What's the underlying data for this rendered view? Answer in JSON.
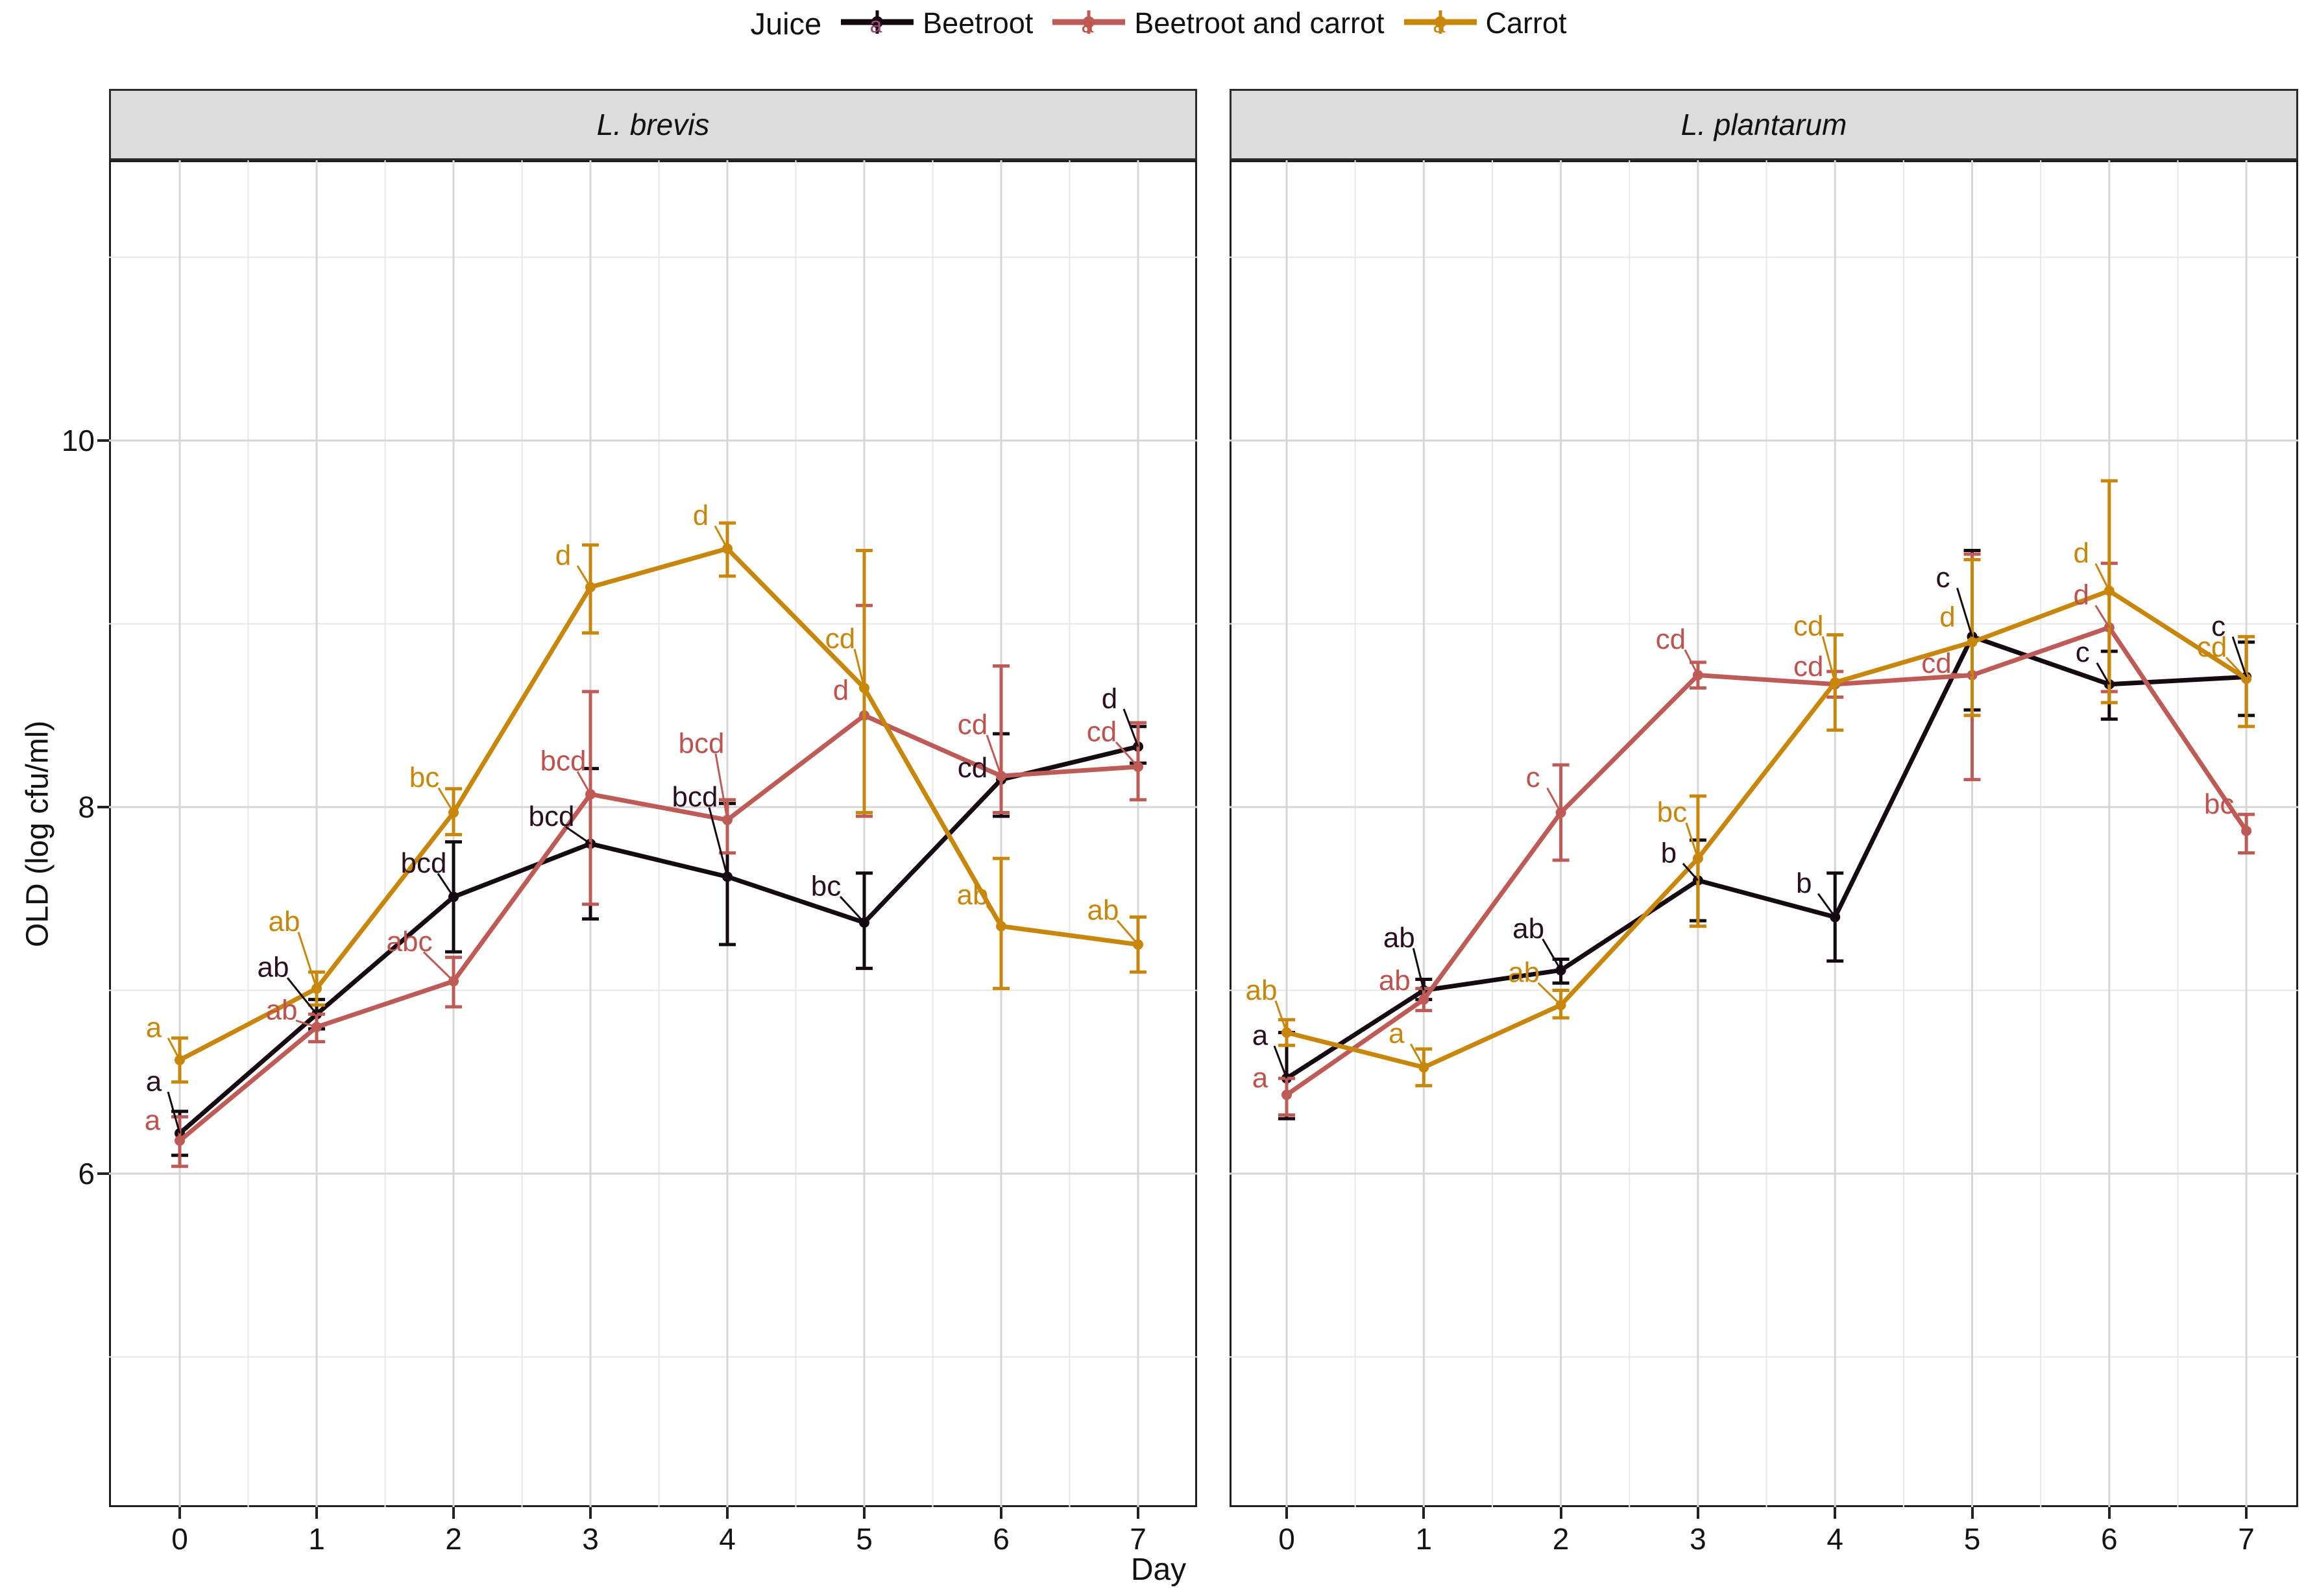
{
  "legend": {
    "title": "Juice",
    "key_letter": "a"
  },
  "chart_data": {
    "type": "line",
    "legend_title": "Juice",
    "legend_position": "top",
    "xlabel": "Day",
    "ylabel": "OLD (log cfu/ml)",
    "x_ticks": [
      0,
      1,
      2,
      3,
      4,
      5,
      6,
      7
    ],
    "y_ticks": [
      6,
      8,
      10
    ],
    "y_minor_ticks": [
      5,
      7,
      9,
      11
    ],
    "ylim": [
      4.2,
      11.5
    ],
    "grid": true,
    "series_meta": [
      {
        "key": "beetroot",
        "label": "Beetroot",
        "color": "#160a12",
        "letter_color": "#2a0f1f",
        "legend_letter_color": "#a1487e"
      },
      {
        "key": "beetroot_carrot",
        "label": "Beetroot and carrot",
        "color": "#bf5b56",
        "letter_color": "#c0524e",
        "legend_letter_color": "#c0524e"
      },
      {
        "key": "carrot",
        "label": "Carrot",
        "color": "#c8860b",
        "letter_color": "#c8860b",
        "legend_letter_color": "#c8860b"
      }
    ],
    "facets": [
      {
        "title": "L. brevis",
        "series": [
          {
            "key": "beetroot",
            "points": [
              {
                "x": 0,
                "y": 6.22,
                "lo": 6.1,
                "hi": 6.34,
                "letter": "a",
                "lx": -40,
                "ly": -80
              },
              {
                "x": 1,
                "y": 6.87,
                "lo": 6.79,
                "hi": 6.95,
                "letter": "ab",
                "lx": -67,
                "ly": -72
              },
              {
                "x": 2,
                "y": 7.51,
                "lo": 7.21,
                "hi": 7.81,
                "letter": "bcd",
                "lx": -46,
                "ly": -52
              },
              {
                "x": 3,
                "y": 7.8,
                "lo": 7.39,
                "hi": 8.21,
                "letter": "bcd",
                "lx": -60,
                "ly": -42
              },
              {
                "x": 4,
                "y": 7.62,
                "lo": 7.25,
                "hi": 8.02,
                "letter": "bcd",
                "lx": -50,
                "ly": -123
              },
              {
                "x": 5,
                "y": 7.37,
                "lo": 7.12,
                "hi": 7.64,
                "letter": "bc",
                "lx": -59,
                "ly": -56
              },
              {
                "x": 6,
                "y": 8.15,
                "lo": 7.95,
                "hi": 8.4,
                "letter": "cd",
                "lx": -44,
                "ly": -18
              },
              {
                "x": 7,
                "y": 8.33,
                "lo": 8.24,
                "hi": 8.44,
                "letter": "d",
                "lx": -44,
                "ly": -74
              }
            ]
          },
          {
            "key": "beetroot_carrot",
            "points": [
              {
                "x": 0,
                "y": 6.18,
                "lo": 6.04,
                "hi": 6.31,
                "letter": "a",
                "lx": -42,
                "ly": -31
              },
              {
                "x": 1,
                "y": 6.8,
                "lo": 6.72,
                "hi": 6.87,
                "letter": "ab",
                "lx": -54,
                "ly": -26
              },
              {
                "x": 2,
                "y": 7.05,
                "lo": 6.91,
                "hi": 7.18,
                "letter": "abc",
                "lx": -68,
                "ly": -61
              },
              {
                "x": 3,
                "y": 8.07,
                "lo": 7.47,
                "hi": 8.63,
                "letter": "bcd",
                "lx": -42,
                "ly": -51
              },
              {
                "x": 4,
                "y": 7.93,
                "lo": 7.75,
                "hi": 8.04,
                "letter": "bcd",
                "lx": -40,
                "ly": -118
              },
              {
                "x": 5,
                "y": 8.5,
                "lo": 7.95,
                "hi": 9.1,
                "letter": "d",
                "lx": -36,
                "ly": -39
              },
              {
                "x": 6,
                "y": 8.17,
                "lo": 7.97,
                "hi": 8.77,
                "letter": "cd",
                "lx": -44,
                "ly": -79
              },
              {
                "x": 7,
                "y": 8.22,
                "lo": 8.04,
                "hi": 8.46,
                "letter": "cd",
                "lx": -56,
                "ly": -54
              }
            ]
          },
          {
            "key": "carrot",
            "points": [
              {
                "x": 0,
                "y": 6.62,
                "lo": 6.5,
                "hi": 6.74,
                "letter": "a",
                "lx": -40,
                "ly": -50
              },
              {
                "x": 1,
                "y": 7.01,
                "lo": 6.92,
                "hi": 7.1,
                "letter": "ab",
                "lx": -50,
                "ly": -103
              },
              {
                "x": 2,
                "y": 7.97,
                "lo": 7.85,
                "hi": 8.1,
                "letter": "bc",
                "lx": -45,
                "ly": -54
              },
              {
                "x": 3,
                "y": 9.2,
                "lo": 8.95,
                "hi": 9.43,
                "letter": "d",
                "lx": -42,
                "ly": -49
              },
              {
                "x": 4,
                "y": 9.41,
                "lo": 9.26,
                "hi": 9.55,
                "letter": "d",
                "lx": -41,
                "ly": -51
              },
              {
                "x": 5,
                "y": 8.65,
                "lo": 7.97,
                "hi": 9.4,
                "letter": "cd",
                "lx": -37,
                "ly": -76
              },
              {
                "x": 6,
                "y": 7.35,
                "lo": 7.01,
                "hi": 7.72,
                "letter": "ab",
                "lx": -44,
                "ly": -48
              },
              {
                "x": 7,
                "y": 7.25,
                "lo": 7.1,
                "hi": 7.4,
                "letter": "ab",
                "lx": -54,
                "ly": -53
              }
            ]
          }
        ]
      },
      {
        "title": "L. plantarum",
        "series": [
          {
            "key": "beetroot",
            "points": [
              {
                "x": 0,
                "y": 6.52,
                "lo": 6.3,
                "hi": 6.77,
                "letter": "a",
                "lx": -41,
                "ly": -66
              },
              {
                "x": 1,
                "y": 7.0,
                "lo": 6.95,
                "hi": 7.06,
                "letter": "ab",
                "lx": -38,
                "ly": -81
              },
              {
                "x": 2,
                "y": 7.11,
                "lo": 7.04,
                "hi": 7.17,
                "letter": "ab",
                "lx": -50,
                "ly": -64
              },
              {
                "x": 3,
                "y": 7.6,
                "lo": 7.38,
                "hi": 7.82,
                "letter": "b",
                "lx": -45,
                "ly": -42
              },
              {
                "x": 4,
                "y": 7.4,
                "lo": 7.16,
                "hi": 7.64,
                "letter": "b",
                "lx": -48,
                "ly": -52
              },
              {
                "x": 5,
                "y": 8.93,
                "lo": 8.53,
                "hi": 9.4,
                "letter": "c",
                "lx": -45,
                "ly": -91
              },
              {
                "x": 6,
                "y": 8.67,
                "lo": 8.48,
                "hi": 8.85,
                "letter": "c",
                "lx": -41,
                "ly": -49
              },
              {
                "x": 7,
                "y": 8.71,
                "lo": 8.5,
                "hi": 8.9,
                "letter": "c",
                "lx": -43,
                "ly": -78
              }
            ]
          },
          {
            "key": "beetroot_carrot",
            "points": [
              {
                "x": 0,
                "y": 6.43,
                "lo": 6.32,
                "hi": 6.52,
                "letter": "a",
                "lx": -41,
                "ly": -26
              },
              {
                "x": 1,
                "y": 6.95,
                "lo": 6.89,
                "hi": 7.01,
                "letter": "ab",
                "lx": -45,
                "ly": -29
              },
              {
                "x": 2,
                "y": 7.97,
                "lo": 7.71,
                "hi": 8.23,
                "letter": "c",
                "lx": -43,
                "ly": -54
              },
              {
                "x": 3,
                "y": 8.72,
                "lo": 8.65,
                "hi": 8.79,
                "letter": "cd",
                "lx": -42,
                "ly": -55
              },
              {
                "x": 4,
                "y": 8.67,
                "lo": 8.6,
                "hi": 8.74,
                "letter": "cd",
                "lx": -41,
                "ly": -27
              },
              {
                "x": 5,
                "y": 8.72,
                "lo": 8.15,
                "hi": 9.38,
                "letter": "cd",
                "lx": -55,
                "ly": -18
              },
              {
                "x": 6,
                "y": 8.98,
                "lo": 8.63,
                "hi": 9.33,
                "letter": "d",
                "lx": -43,
                "ly": -50
              },
              {
                "x": 7,
                "y": 7.87,
                "lo": 7.75,
                "hi": 7.96,
                "letter": "bc",
                "lx": -42,
                "ly": -41
              }
            ]
          },
          {
            "key": "carrot",
            "points": [
              {
                "x": 0,
                "y": 6.77,
                "lo": 6.7,
                "hi": 6.84,
                "letter": "ab",
                "lx": -39,
                "ly": -65
              },
              {
                "x": 1,
                "y": 6.58,
                "lo": 6.48,
                "hi": 6.68,
                "letter": "a",
                "lx": -42,
                "ly": -52
              },
              {
                "x": 2,
                "y": 6.92,
                "lo": 6.85,
                "hi": 7.0,
                "letter": "ab",
                "lx": -57,
                "ly": -50
              },
              {
                "x": 3,
                "y": 7.72,
                "lo": 7.35,
                "hi": 8.06,
                "letter": "bc",
                "lx": -40,
                "ly": -71
              },
              {
                "x": 4,
                "y": 8.68,
                "lo": 8.42,
                "hi": 8.94,
                "letter": "cd",
                "lx": -41,
                "ly": -87
              },
              {
                "x": 5,
                "y": 8.9,
                "lo": 8.5,
                "hi": 9.35,
                "letter": "d",
                "lx": -38,
                "ly": -39
              },
              {
                "x": 6,
                "y": 9.18,
                "lo": 8.57,
                "hi": 9.78,
                "letter": "d",
                "lx": -43,
                "ly": -58
              },
              {
                "x": 7,
                "y": 8.7,
                "lo": 8.44,
                "hi": 8.93,
                "letter": "cd",
                "lx": -53,
                "ly": -49
              }
            ]
          }
        ]
      }
    ]
  }
}
